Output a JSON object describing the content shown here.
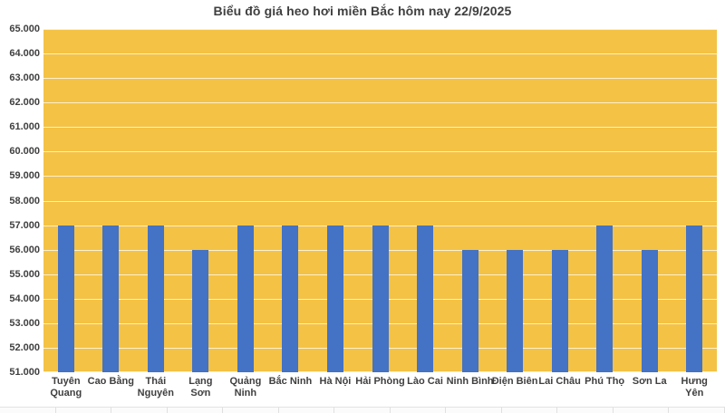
{
  "chart_data": {
    "type": "bar",
    "title": "Biểu đồ giá heo hơi miền Bắc hôm nay 22/9/2025",
    "categories": [
      "Tuyên Quang",
      "Cao Bằng",
      "Thái Nguyên",
      "Lạng Sơn",
      "Quảng Ninh",
      "Bắc Ninh",
      "Hà Nội",
      "Hải Phòng",
      "Lào Cai",
      "Ninh Bình",
      "Điện Biên",
      "Lai Châu",
      "Phú Thọ",
      "Sơn La",
      "Hưng Yên"
    ],
    "category_lines": [
      [
        "Tuyên",
        "Quang"
      ],
      [
        "Cao Bằng"
      ],
      [
        "Thái",
        "Nguyên"
      ],
      [
        "Lạng",
        "Sơn"
      ],
      [
        "Quảng",
        "Ninh"
      ],
      [
        "Bắc Ninh"
      ],
      [
        "Hà Nội"
      ],
      [
        "Hải Phòng"
      ],
      [
        "Lào Cai"
      ],
      [
        "Ninh Bình"
      ],
      [
        "Điện Biên"
      ],
      [
        "Lai Châu"
      ],
      [
        "Phú Thọ"
      ],
      [
        "Sơn La"
      ],
      [
        "Hưng",
        "Yên"
      ]
    ],
    "values": [
      57000,
      57000,
      57000,
      56000,
      57000,
      57000,
      57000,
      57000,
      57000,
      56000,
      56000,
      56000,
      57000,
      56000,
      57000
    ],
    "ylim": [
      51000,
      65000
    ],
    "ytick_step": 1000,
    "yticks": [
      {
        "value": 65000,
        "label": "65.000"
      },
      {
        "value": 64000,
        "label": "64.000"
      },
      {
        "value": 63000,
        "label": "63.000"
      },
      {
        "value": 62000,
        "label": "62.000"
      },
      {
        "value": 61000,
        "label": "61.000"
      },
      {
        "value": 60000,
        "label": "60.000"
      },
      {
        "value": 59000,
        "label": "59.000"
      },
      {
        "value": 58000,
        "label": "58.000"
      },
      {
        "value": 57000,
        "label": "57.000"
      },
      {
        "value": 56000,
        "label": "56.000"
      },
      {
        "value": 55000,
        "label": "55.000"
      },
      {
        "value": 54000,
        "label": "54.000"
      },
      {
        "value": 53000,
        "label": "53.000"
      },
      {
        "value": 52000,
        "label": "52.000"
      },
      {
        "value": 51000,
        "label": "51.000"
      }
    ],
    "grid": "horizontal",
    "legend": "none",
    "xlabel": "",
    "ylabel": "",
    "colors": {
      "plot_background": "#F4C244",
      "bar": "#4472C4",
      "gridline": "#FFFFFF",
      "text": "#3F3F3F"
    }
  },
  "bottom_table": {
    "cell_count": 13
  }
}
